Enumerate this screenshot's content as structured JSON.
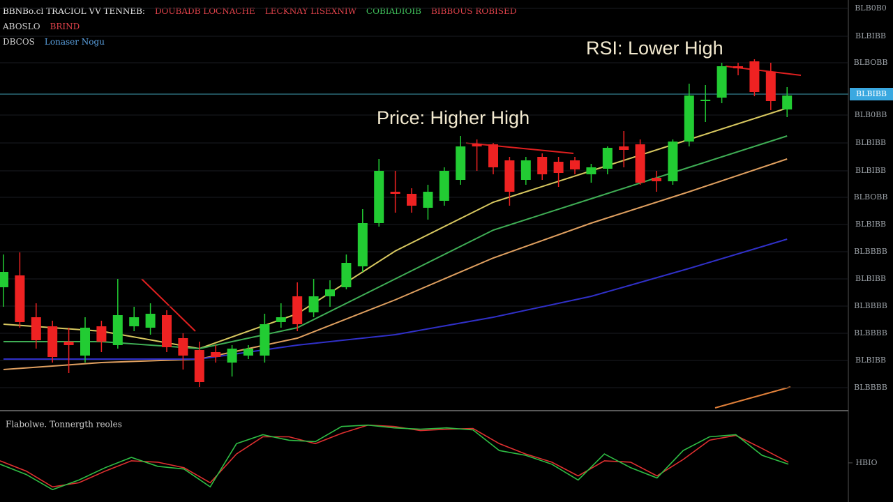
{
  "header": [
    [
      {
        "text": "BBNBo.cl TRACIOL VV TENNEB:",
        "color": "#e8e8e8"
      },
      {
        "text": "DOUBADB LOCNACHE",
        "color": "#e0424a"
      },
      {
        "text": "LECKNAY LISEXNIW",
        "color": "#e0424a"
      },
      {
        "text": "COBIADIOIB",
        "color": "#3fbf5a"
      },
      {
        "text": "BIBBOUS ROBISED",
        "color": "#e0424a"
      }
    ],
    [
      {
        "text": "ABOSLO",
        "color": "#d0d0d0"
      },
      {
        "text": "BRIND",
        "color": "#e0424a"
      }
    ],
    [
      {
        "text": "DBCOS",
        "color": "#d0d0d0"
      },
      {
        "text": "Lonaser Nogu",
        "color": "#5aa0e0"
      }
    ]
  ],
  "chart_data": [
    {
      "type": "candlestick",
      "categories": [
        null,
        null,
        null,
        null,
        null,
        null,
        null,
        null,
        null,
        null,
        null,
        null,
        null,
        null,
        null,
        null,
        null,
        null,
        null,
        null,
        null,
        null,
        null,
        null,
        null,
        null,
        null,
        null,
        null,
        null,
        null,
        null,
        null,
        null,
        null,
        null,
        null,
        null,
        null,
        null,
        null,
        null,
        null,
        null,
        null,
        null,
        null,
        null,
        null
      ],
      "open": [
        176,
        193,
        133,
        120,
        98,
        78,
        120,
        93,
        120,
        118,
        136,
        103,
        86,
        83,
        68,
        78,
        78,
        126,
        163,
        140,
        163,
        176,
        206,
        268,
        313,
        310,
        290,
        300,
        330,
        382,
        381,
        358,
        330,
        363,
        356,
        358,
        338,
        346,
        378,
        381,
        333,
        328,
        385,
        443,
        448,
        493,
        500,
        485,
        431
      ],
      "high": [
        223,
        226,
        153,
        128,
        118,
        133,
        128,
        188,
        148,
        153,
        143,
        110,
        98,
        93,
        93,
        93,
        138,
        153,
        183,
        188,
        186,
        223,
        288,
        360,
        343,
        318,
        323,
        348,
        393,
        388,
        383,
        363,
        363,
        368,
        363,
        363,
        353,
        378,
        400,
        388,
        343,
        388,
        468,
        466,
        498,
        498,
        503,
        498,
        463
      ],
      "low": [
        148,
        118,
        88,
        68,
        53,
        68,
        83,
        88,
        113,
        108,
        83,
        58,
        33,
        68,
        48,
        73,
        68,
        118,
        113,
        133,
        148,
        173,
        198,
        263,
        283,
        283,
        273,
        293,
        323,
        343,
        338,
        293,
        323,
        330,
        320,
        338,
        326,
        338,
        348,
        323,
        313,
        323,
        378,
        413,
        440,
        480,
        450,
        430,
        420
      ],
      "close": [
        198,
        126,
        100,
        76,
        93,
        118,
        98,
        136,
        133,
        138,
        90,
        78,
        40,
        76,
        88,
        88,
        123,
        133,
        123,
        163,
        173,
        211,
        268,
        343,
        310,
        293,
        313,
        343,
        378,
        378,
        348,
        313,
        358,
        338,
        340,
        345,
        348,
        376,
        373,
        326,
        328,
        385,
        451,
        445,
        493,
        490,
        456,
        443,
        451
      ],
      "up_color": "#22cc33",
      "down_color": "#ee2222",
      "ylim": [
        0,
        588
      ],
      "yticks": [
        {
          "value": 576,
          "label": "BLB0B0"
        },
        {
          "value": 536,
          "label": "BLBIBB"
        },
        {
          "value": 498,
          "label": "BLBOBB"
        },
        {
          "value": 423,
          "label": "BLB0BB"
        },
        {
          "value": 383,
          "label": "BLBIBB"
        },
        {
          "value": 343,
          "label": "BLBIBB"
        },
        {
          "value": 305,
          "label": "BLBOBB"
        },
        {
          "value": 266,
          "label": "BLBIBB"
        },
        {
          "value": 227,
          "label": "BLBBBB"
        },
        {
          "value": 188,
          "label": "BLBIBB"
        },
        {
          "value": 149,
          "label": "BLBBBB"
        },
        {
          "value": 110,
          "label": "BLBBBB"
        },
        {
          "value": 71,
          "label": "BLBIBB"
        },
        {
          "value": 32,
          "label": "BLBBBB"
        }
      ],
      "last_price": {
        "value": 453,
        "label": "BLBIBB"
      },
      "grid": true,
      "overlays": [
        {
          "color": "#d8c860",
          "x": [
            0,
            6,
            12,
            18,
            24,
            30,
            36,
            42,
            48
          ],
          "values": [
            123,
            113,
            88,
            138,
            228,
            298,
            343,
            388,
            433
          ]
        },
        {
          "color": "#3fae55",
          "x": [
            0,
            6,
            12,
            18,
            24,
            30,
            36,
            42,
            48
          ],
          "values": [
            98,
            98,
            88,
            118,
            188,
            258,
            303,
            348,
            393
          ]
        },
        {
          "color": "#e0a060",
          "x": [
            0,
            6,
            12,
            18,
            24,
            30,
            36,
            42,
            48
          ],
          "values": [
            58,
            68,
            73,
            103,
            158,
            218,
            268,
            313,
            360
          ]
        },
        {
          "color": "#3030c8",
          "x": [
            0,
            6,
            12,
            18,
            24,
            30,
            36,
            42,
            48
          ],
          "values": [
            73,
            73,
            73,
            93,
            108,
            133,
            163,
            203,
            245
          ]
        }
      ],
      "annotations": [
        "Price: Higher High",
        "RSI: Lower High"
      ]
    },
    {
      "type": "line",
      "title": "Flabolwe. Tonnergth reoles",
      "categories": [
        null,
        null,
        null,
        null,
        null,
        null,
        null,
        null,
        null,
        null,
        null,
        null,
        null,
        null,
        null,
        null,
        null,
        null,
        null,
        null,
        null,
        null,
        null,
        null,
        null,
        null,
        null,
        null,
        null,
        null,
        null
      ],
      "series": [
        {
          "color": "#e03030",
          "values": [
            60,
            45,
            22,
            28,
            45,
            60,
            58,
            50,
            28,
            70,
            95,
            95,
            85,
            100,
            112,
            110,
            104,
            106,
            107,
            85,
            70,
            58,
            38,
            60,
            58,
            38,
            62,
            90,
            97,
            78,
            58
          ]
        },
        {
          "color": "#2fbf45",
          "values": [
            55,
            40,
            18,
            32,
            50,
            65,
            52,
            48,
            22,
            85,
            98,
            90,
            88,
            110,
            112,
            108,
            106,
            108,
            105,
            75,
            68,
            55,
            32,
            70,
            50,
            35,
            75,
            95,
            98,
            68,
            55
          ]
        }
      ],
      "ylim": [
        0,
        130
      ],
      "yticks": [
        {
          "value": 57,
          "label": "HBIO"
        }
      ]
    }
  ]
}
